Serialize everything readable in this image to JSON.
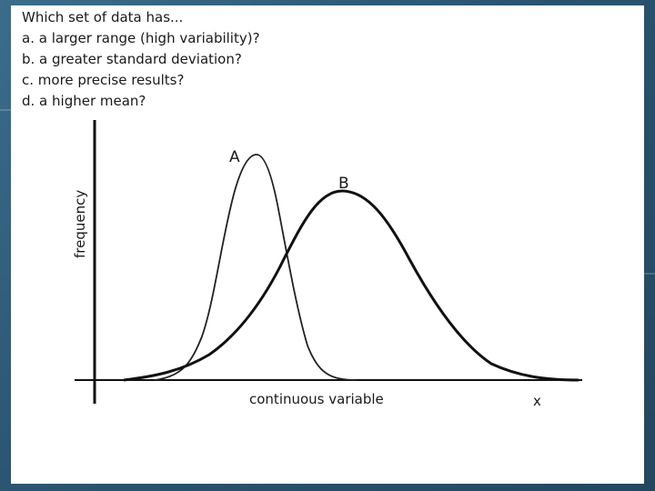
{
  "question": {
    "title": "Which set of data has...",
    "items": [
      "a. a larger range (high variability)?",
      "b. a greater standard deviation?",
      "c. more precise results?",
      "d. a higher mean?"
    ]
  },
  "diagram": {
    "y_axis_label": "frequency",
    "x_axis_label": "continuous variable",
    "x_symbol": "x",
    "curve_a_label": "A",
    "curve_b_label": "B"
  },
  "colors": {
    "background": "#2d5873",
    "card": "#ffffff",
    "ink": "#1a1a1a"
  }
}
